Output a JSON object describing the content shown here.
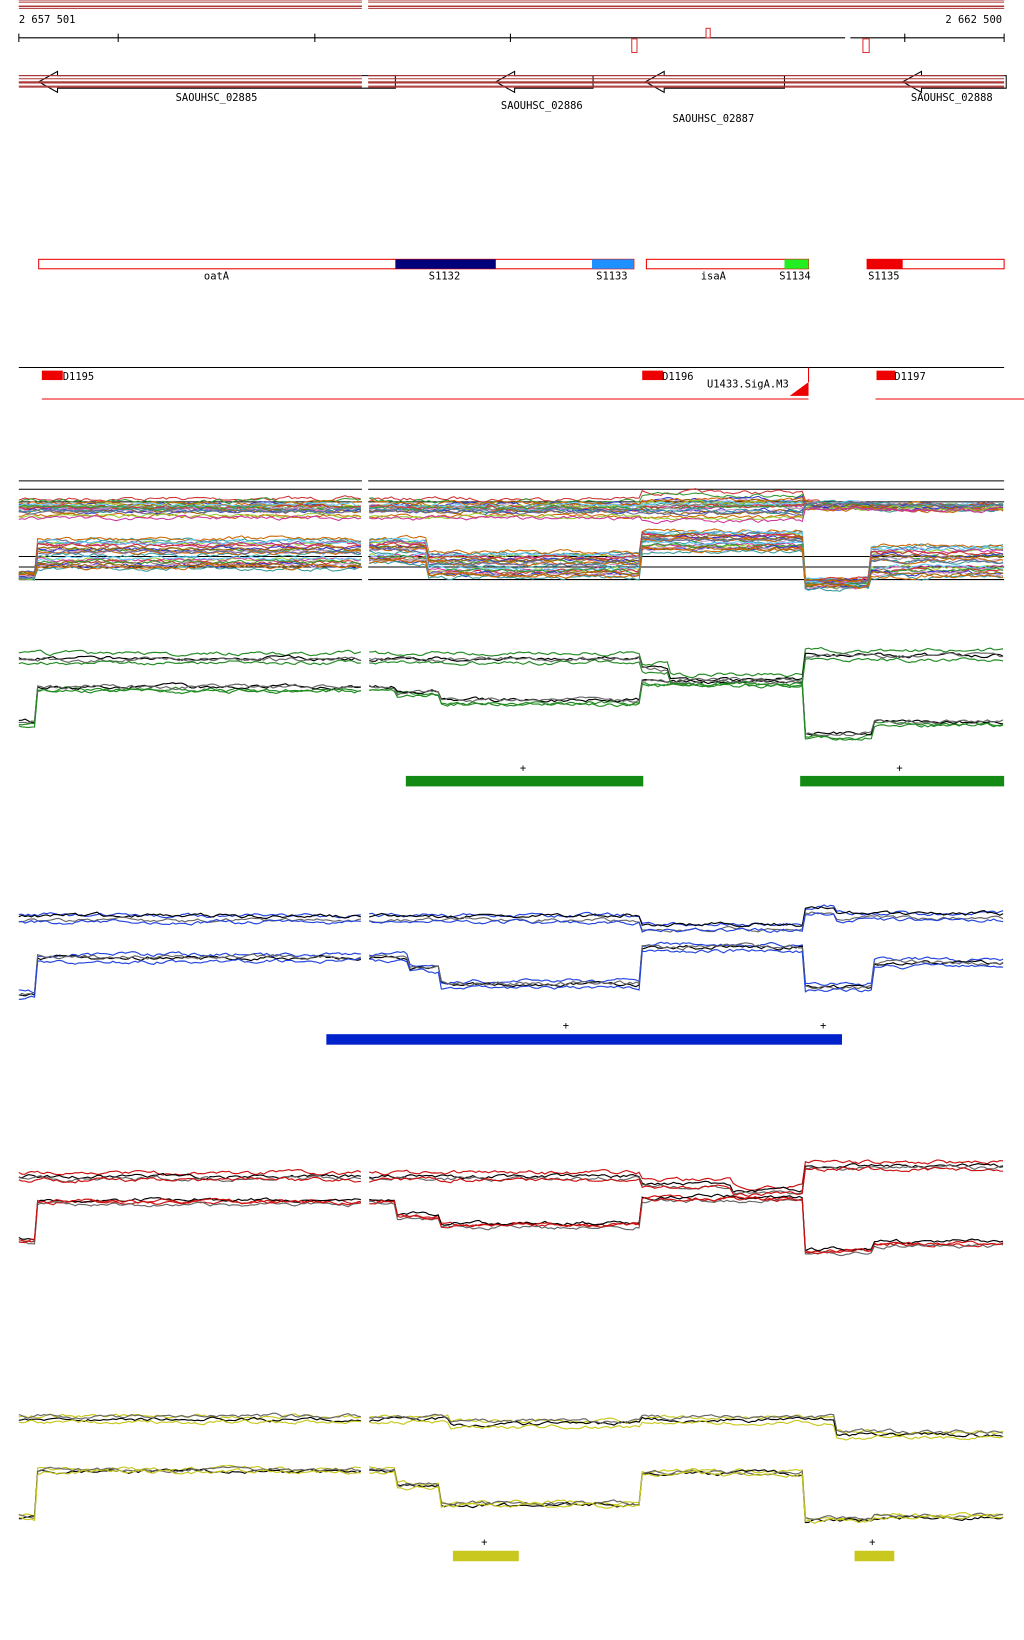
{
  "ruler": {
    "start": "2 657 501",
    "end": "2 662 500"
  },
  "genes": [
    {
      "label": "SAOUHSC_02885"
    },
    {
      "label": "SAOUHSC_02886"
    },
    {
      "label": "SAOUHSC_02887"
    },
    {
      "label": "SAOUHSC_02888"
    }
  ],
  "segments": [
    {
      "label": "oatA"
    },
    {
      "label": "S1132"
    },
    {
      "label": "S1133"
    },
    {
      "label": "isaA"
    },
    {
      "label": "S1134"
    },
    {
      "label": "S1135"
    }
  ],
  "features": [
    {
      "label": "D1195"
    },
    {
      "label": "D1196"
    },
    {
      "label": "U1433.SigA.M3"
    },
    {
      "label": "D1197"
    }
  ],
  "tracks": [
    {
      "markers": [
        "+",
        "+"
      ]
    },
    {
      "markers": [
        "+",
        "+"
      ]
    },
    {
      "markers": [
        "+",
        "+"
      ]
    }
  ]
}
